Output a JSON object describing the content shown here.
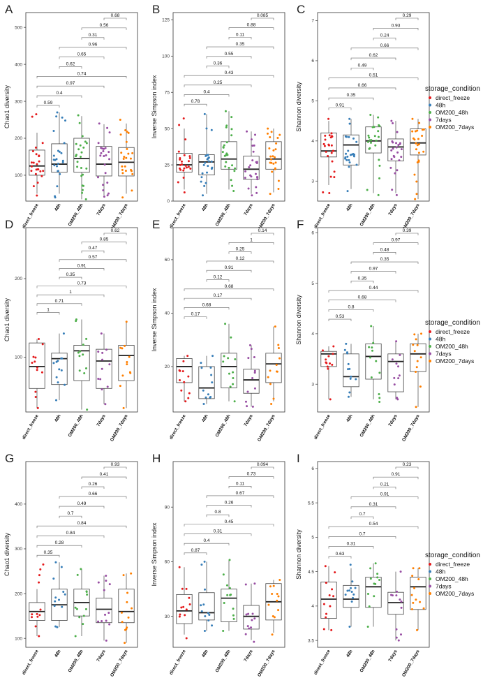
{
  "figure": {
    "categories": [
      "direct_freeze",
      "48h",
      "OM200_48h",
      "7days",
      "OM200_7days"
    ],
    "colors": {
      "direct_freeze": "#e41a1c",
      "48h": "#377eb8",
      "OM200_48h": "#4daf4a",
      "7days": "#984ea3",
      "OM200_7days": "#ff7f00"
    },
    "legend": {
      "title": "storage_condition",
      "labels": [
        "direct_freeze",
        "48h",
        "OM200_48h",
        "7days",
        "OM200_7days"
      ]
    }
  },
  "chart_data": [
    {
      "panel": "A",
      "type": "boxplot",
      "ylabel": "Chao1 diversity",
      "ylim": [
        30,
        540
      ],
      "yticks": [
        100,
        200,
        300,
        400,
        500
      ],
      "boxes": [
        [
          50,
          100,
          125,
          168,
          215
        ],
        [
          50,
          108,
          130,
          185,
          270
        ],
        [
          35,
          108,
          145,
          200,
          260
        ],
        [
          45,
          98,
          130,
          178,
          238
        ],
        [
          50,
          98,
          135,
          175,
          240
        ]
      ],
      "n_points": [
        24,
        24,
        24,
        24,
        24
      ],
      "point_range": [
        [
          45,
          265
        ],
        [
          40,
          270
        ],
        [
          35,
          262
        ],
        [
          42,
          240
        ],
        [
          40,
          250
        ]
      ],
      "comparisons": [
        {
          "pair": [
            1,
            2
          ],
          "p": "0.59"
        },
        {
          "pair": [
            1,
            3
          ],
          "p": "0.4"
        },
        {
          "pair": [
            1,
            4
          ],
          "p": "0.97"
        },
        {
          "pair": [
            1,
            5
          ],
          "p": "0.74"
        },
        {
          "pair": [
            2,
            3
          ],
          "p": "0.62"
        },
        {
          "pair": [
            2,
            4
          ],
          "p": "0.65"
        },
        {
          "pair": [
            2,
            5
          ],
          "p": "0.96"
        },
        {
          "pair": [
            3,
            4
          ],
          "p": "0.31"
        },
        {
          "pair": [
            3,
            5
          ],
          "p": "0.56"
        },
        {
          "pair": [
            4,
            5
          ],
          "p": "0.68"
        }
      ]
    },
    {
      "panel": "B",
      "type": "boxplot",
      "ylabel": "Inverse Simpson index",
      "ylim": [
        0,
        130
      ],
      "yticks": [
        0,
        25,
        50,
        75,
        100,
        125
      ],
      "boxes": [
        [
          8,
          20,
          25,
          33,
          50
        ],
        [
          5,
          18,
          27,
          32,
          60
        ],
        [
          8,
          22,
          29,
          41,
          62
        ],
        [
          5,
          15,
          22,
          31,
          48
        ],
        [
          6,
          22,
          29,
          41,
          50
        ]
      ],
      "n_points": [
        24,
        24,
        24,
        24,
        24
      ],
      "point_range": [
        [
          6,
          57
        ],
        [
          4,
          60
        ],
        [
          7,
          62
        ],
        [
          4,
          48
        ],
        [
          5,
          50
        ]
      ],
      "comparisons": [
        {
          "pair": [
            1,
            2
          ],
          "p": "0.78"
        },
        {
          "pair": [
            1,
            3
          ],
          "p": "0.4"
        },
        {
          "pair": [
            1,
            4
          ],
          "p": "0.25"
        },
        {
          "pair": [
            1,
            5
          ],
          "p": "0.43"
        },
        {
          "pair": [
            2,
            3
          ],
          "p": "0.36"
        },
        {
          "pair": [
            2,
            4
          ],
          "p": "0.55"
        },
        {
          "pair": [
            2,
            5
          ],
          "p": "0.35"
        },
        {
          "pair": [
            3,
            4
          ],
          "p": "0.11"
        },
        {
          "pair": [
            3,
            5
          ],
          "p": "0.88"
        },
        {
          "pair": [
            4,
            5
          ],
          "p": "0.085"
        }
      ]
    },
    {
      "panel": "C",
      "type": "boxplot",
      "ylabel": "Shannon diversity",
      "ylim": [
        2.5,
        7.2
      ],
      "yticks": [
        3,
        4,
        5,
        6,
        7
      ],
      "boxes": [
        [
          2.9,
          3.6,
          3.75,
          4.2,
          4.5
        ],
        [
          2.8,
          3.4,
          3.9,
          4.15,
          4.55
        ],
        [
          2.7,
          3.7,
          4.0,
          4.35,
          4.65
        ],
        [
          2.7,
          3.5,
          3.85,
          4.05,
          4.5
        ],
        [
          2.55,
          3.65,
          3.95,
          4.3,
          4.55
        ]
      ],
      "n_points": [
        24,
        24,
        24,
        24,
        24
      ],
      "point_range": [
        [
          2.7,
          4.55
        ],
        [
          2.75,
          4.55
        ],
        [
          2.65,
          4.65
        ],
        [
          2.65,
          4.5
        ],
        [
          2.55,
          4.55
        ]
      ],
      "comparisons": [
        {
          "pair": [
            1,
            2
          ],
          "p": "0.91"
        },
        {
          "pair": [
            1,
            3
          ],
          "p": "0.35"
        },
        {
          "pair": [
            1,
            4
          ],
          "p": "0.66"
        },
        {
          "pair": [
            1,
            5
          ],
          "p": "0.51"
        },
        {
          "pair": [
            2,
            3
          ],
          "p": "0.49"
        },
        {
          "pair": [
            2,
            4
          ],
          "p": "0.62"
        },
        {
          "pair": [
            2,
            5
          ],
          "p": "0.66"
        },
        {
          "pair": [
            3,
            4
          ],
          "p": "0.24"
        },
        {
          "pair": [
            3,
            5
          ],
          "p": "0.93"
        },
        {
          "pair": [
            4,
            5
          ],
          "p": "0.29"
        }
      ]
    },
    {
      "panel": "D",
      "type": "boxplot",
      "ylabel": "Chao1 diversity",
      "ylim": [
        30,
        265
      ],
      "yticks": [
        100,
        200
      ],
      "boxes": [
        [
          35,
          60,
          88,
          118,
          123
        ],
        [
          45,
          65,
          98,
          105,
          130
        ],
        [
          33,
          70,
          108,
          115,
          148
        ],
        [
          40,
          60,
          95,
          110,
          130
        ],
        [
          35,
          70,
          102,
          115,
          145
        ]
      ],
      "n_points": [
        12,
        12,
        12,
        12,
        12
      ],
      "point_range": [
        [
          35,
          123
        ],
        [
          45,
          130
        ],
        [
          33,
          148
        ],
        [
          40,
          130
        ],
        [
          35,
          145
        ]
      ],
      "comparisons": [
        {
          "pair": [
            1,
            2
          ],
          "p": "1"
        },
        {
          "pair": [
            1,
            3
          ],
          "p": "0.71"
        },
        {
          "pair": [
            1,
            4
          ],
          "p": "1"
        },
        {
          "pair": [
            1,
            5
          ],
          "p": "0.73"
        },
        {
          "pair": [
            2,
            3
          ],
          "p": "0.35"
        },
        {
          "pair": [
            2,
            4
          ],
          "p": "0.91"
        },
        {
          "pair": [
            2,
            5
          ],
          "p": "0.57"
        },
        {
          "pair": [
            3,
            4
          ],
          "p": "0.47"
        },
        {
          "pair": [
            3,
            5
          ],
          "p": "0.85"
        },
        {
          "pair": [
            4,
            5
          ],
          "p": "0.62"
        }
      ]
    },
    {
      "panel": "E",
      "type": "boxplot",
      "ylabel": "Inverse Simpson index",
      "ylim": [
        3,
        72
      ],
      "yticks": [
        20,
        40,
        60
      ],
      "boxes": [
        [
          7,
          14,
          20,
          23,
          24
        ],
        [
          6,
          8,
          12,
          20,
          24
        ],
        [
          7,
          12,
          20,
          25,
          36
        ],
        [
          5,
          10,
          15,
          19,
          28
        ],
        [
          7,
          14,
          21,
          25,
          35
        ]
      ],
      "n_points": [
        12,
        12,
        12,
        12,
        12
      ],
      "point_range": [
        [
          7,
          24
        ],
        [
          6,
          24
        ],
        [
          7,
          36
        ],
        [
          5,
          28
        ],
        [
          6,
          35
        ]
      ],
      "comparisons": [
        {
          "pair": [
            1,
            2
          ],
          "p": "0.17"
        },
        {
          "pair": [
            1,
            3
          ],
          "p": "0.68"
        },
        {
          "pair": [
            1,
            4
          ],
          "p": "0.17"
        },
        {
          "pair": [
            1,
            5
          ],
          "p": "0.68"
        },
        {
          "pair": [
            2,
            3
          ],
          "p": "0.12"
        },
        {
          "pair": [
            2,
            4
          ],
          "p": "0.91"
        },
        {
          "pair": [
            2,
            5
          ],
          "p": "0.12"
        },
        {
          "pair": [
            3,
            4
          ],
          "p": "0.25"
        },
        {
          "pair": [
            3,
            5
          ],
          "p": "1"
        },
        {
          "pair": [
            4,
            5
          ],
          "p": "0.14"
        }
      ]
    },
    {
      "panel": "F",
      "type": "boxplot",
      "ylabel": "Shannon diversity",
      "ylim": [
        2.45,
        6.1
      ],
      "yticks": [
        3,
        4,
        5,
        6
      ],
      "boxes": [
        [
          2.7,
          3.35,
          3.6,
          3.65,
          3.75
        ],
        [
          2.75,
          2.95,
          3.15,
          3.6,
          3.8
        ],
        [
          2.7,
          3.1,
          3.55,
          3.8,
          4.15
        ],
        [
          2.7,
          2.85,
          3.45,
          3.6,
          3.85
        ],
        [
          2.55,
          3.25,
          3.6,
          3.8,
          4.0
        ]
      ],
      "n_points": [
        12,
        12,
        12,
        12,
        12
      ],
      "point_range": [
        [
          2.7,
          3.75
        ],
        [
          2.75,
          3.8
        ],
        [
          2.65,
          4.15
        ],
        [
          2.7,
          3.85
        ],
        [
          2.55,
          4.0
        ]
      ],
      "comparisons": [
        {
          "pair": [
            1,
            2
          ],
          "p": "0.53"
        },
        {
          "pair": [
            1,
            3
          ],
          "p": "0.8"
        },
        {
          "pair": [
            1,
            4
          ],
          "p": "0.68"
        },
        {
          "pair": [
            1,
            5
          ],
          "p": "0.44"
        },
        {
          "pair": [
            2,
            3
          ],
          "p": "0.35"
        },
        {
          "pair": [
            2,
            4
          ],
          "p": "0.97"
        },
        {
          "pair": [
            2,
            5
          ],
          "p": "0.35"
        },
        {
          "pair": [
            3,
            4
          ],
          "p": "0.48"
        },
        {
          "pair": [
            3,
            5
          ],
          "p": "0.97"
        },
        {
          "pair": [
            4,
            5
          ],
          "p": "0.39"
        }
      ]
    },
    {
      "panel": "G",
      "type": "boxplot",
      "ylabel": "Chao1 diversity",
      "ylim": [
        80,
        495
      ],
      "yticks": [
        100,
        200,
        300,
        400
      ],
      "boxes": [
        [
          105,
          140,
          160,
          180,
          210
        ],
        [
          125,
          140,
          175,
          210,
          270
        ],
        [
          105,
          150,
          180,
          210,
          255
        ],
        [
          95,
          135,
          165,
          190,
          240
        ],
        [
          90,
          135,
          160,
          210,
          245
        ]
      ],
      "n_points": [
        12,
        12,
        12,
        12,
        12
      ],
      "point_range": [
        [
          105,
          265
        ],
        [
          125,
          270
        ],
        [
          105,
          255
        ],
        [
          95,
          240
        ],
        [
          90,
          245
        ]
      ],
      "comparisons": [
        {
          "pair": [
            1,
            2
          ],
          "p": "0.35"
        },
        {
          "pair": [
            1,
            3
          ],
          "p": "0.28"
        },
        {
          "pair": [
            1,
            4
          ],
          "p": "0.84"
        },
        {
          "pair": [
            1,
            5
          ],
          "p": "0.84"
        },
        {
          "pair": [
            2,
            3
          ],
          "p": "0.7"
        },
        {
          "pair": [
            2,
            4
          ],
          "p": "0.49"
        },
        {
          "pair": [
            2,
            5
          ],
          "p": "0.66"
        },
        {
          "pair": [
            3,
            4
          ],
          "p": "0.26"
        },
        {
          "pair": [
            3,
            5
          ],
          "p": "0.41"
        },
        {
          "pair": [
            4,
            5
          ],
          "p": "0.93"
        }
      ]
    },
    {
      "panel": "H",
      "type": "boxplot",
      "ylabel": "Inverse Simpson index",
      "ylim": [
        13,
        115
      ],
      "yticks": [
        30,
        60,
        90
      ],
      "boxes": [
        [
          20,
          26,
          33,
          42,
          57
        ],
        [
          22,
          28,
          32,
          43,
          60
        ],
        [
          22,
          27,
          40,
          45,
          61
        ],
        [
          17,
          23,
          30,
          36,
          48
        ],
        [
          21,
          28,
          38,
          48,
          50
        ]
      ],
      "n_points": [
        12,
        12,
        12,
        12,
        12
      ],
      "point_range": [
        [
          18,
          57
        ],
        [
          22,
          60
        ],
        [
          22,
          61
        ],
        [
          16,
          48
        ],
        [
          20,
          50
        ]
      ],
      "comparisons": [
        {
          "pair": [
            1,
            2
          ],
          "p": "0.87"
        },
        {
          "pair": [
            1,
            3
          ],
          "p": "0.4"
        },
        {
          "pair": [
            1,
            4
          ],
          "p": "0.31"
        },
        {
          "pair": [
            1,
            5
          ],
          "p": "0.45"
        },
        {
          "pair": [
            2,
            3
          ],
          "p": "0.8"
        },
        {
          "pair": [
            2,
            4
          ],
          "p": "0.26"
        },
        {
          "pair": [
            2,
            5
          ],
          "p": "0.67"
        },
        {
          "pair": [
            3,
            4
          ],
          "p": "0.11"
        },
        {
          "pair": [
            3,
            5
          ],
          "p": "0.73"
        },
        {
          "pair": [
            4,
            5
          ],
          "p": "0.094"
        }
      ]
    },
    {
      "panel": "I",
      "type": "boxplot",
      "ylabel": "Shannon diversity",
      "ylim": [
        3.4,
        6.1
      ],
      "yticks": [
        3.5,
        4.0,
        4.5,
        5.0,
        5.5,
        6.0
      ],
      "boxes": [
        [
          3.65,
          3.82,
          4.1,
          4.35,
          4.58
        ],
        [
          3.7,
          3.98,
          4.1,
          4.3,
          4.55
        ],
        [
          3.7,
          3.98,
          4.28,
          4.42,
          4.62
        ],
        [
          3.5,
          3.88,
          4.05,
          4.2,
          4.5
        ],
        [
          3.65,
          3.95,
          4.28,
          4.42,
          4.55
        ]
      ],
      "n_points": [
        12,
        12,
        12,
        12,
        12
      ],
      "point_range": [
        [
          3.65,
          4.58
        ],
        [
          3.7,
          4.6
        ],
        [
          3.7,
          4.62
        ],
        [
          3.5,
          4.5
        ],
        [
          3.65,
          4.55
        ]
      ],
      "comparisons": [
        {
          "pair": [
            1,
            2
          ],
          "p": "0.63"
        },
        {
          "pair": [
            1,
            3
          ],
          "p": "0.31"
        },
        {
          "pair": [
            1,
            4
          ],
          "p": "0.7"
        },
        {
          "pair": [
            1,
            5
          ],
          "p": "0.54"
        },
        {
          "pair": [
            2,
            3
          ],
          "p": "0.7"
        },
        {
          "pair": [
            2,
            4
          ],
          "p": "0.31"
        },
        {
          "pair": [
            2,
            5
          ],
          "p": "0.91"
        },
        {
          "pair": [
            3,
            4
          ],
          "p": "0.21"
        },
        {
          "pair": [
            3,
            5
          ],
          "p": "0.91"
        },
        {
          "pair": [
            4,
            5
          ],
          "p": "0.23"
        }
      ]
    }
  ]
}
